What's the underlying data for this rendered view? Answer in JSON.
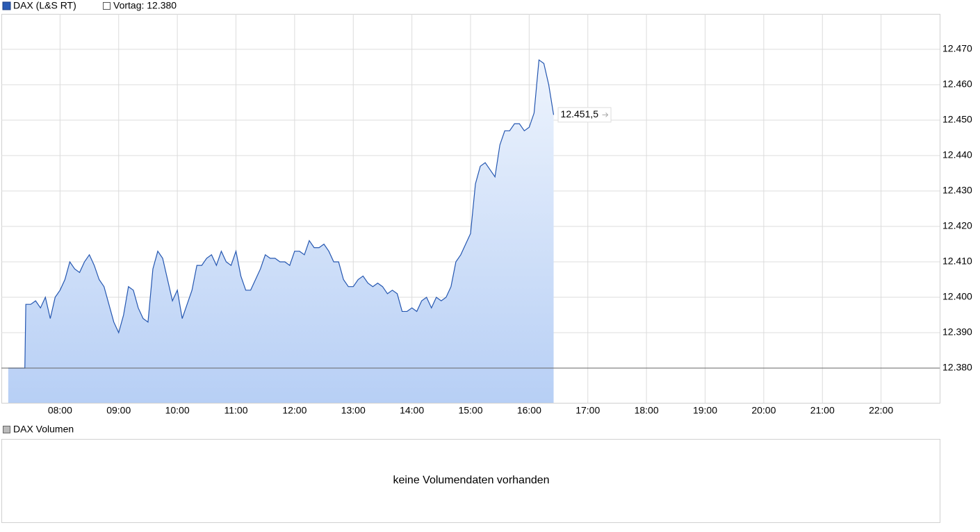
{
  "chart_data": {
    "type": "line",
    "series": [
      {
        "name": "DAX (L&S RT)",
        "color": "#2456b0",
        "values": [
          12380,
          12380,
          12380,
          12380,
          12380,
          12398,
          12398,
          12399,
          12397,
          12400,
          12394,
          12400,
          12402,
          12405,
          12410,
          12408,
          12407,
          12410,
          12412,
          12409,
          12405,
          12403,
          12398,
          12393,
          12390,
          12395,
          12403,
          12402,
          12397,
          12394,
          12393,
          12408,
          12413,
          12411,
          12405,
          12399,
          12402,
          12394,
          12398,
          12402,
          12409,
          12409,
          12411,
          12412,
          12409,
          12413,
          12410,
          12409,
          12413,
          12406,
          12402,
          12402,
          12405,
          12408,
          12412,
          12411,
          12411,
          12410,
          12410,
          12409,
          12413,
          12413,
          12412,
          12416,
          12414,
          12414,
          12415,
          12413,
          12410,
          12410,
          12405,
          12403,
          12403,
          12405,
          12406,
          12404,
          12403,
          12404,
          12403,
          12401,
          12402,
          12401,
          12396,
          12396,
          12397,
          12396,
          12399,
          12400,
          12397,
          12400,
          12399,
          12400,
          12403,
          12410,
          12412,
          12415,
          12418,
          12432,
          12437,
          12438,
          12436,
          12434,
          12443,
          12447,
          12447,
          12449,
          12449,
          12447,
          12448,
          12452,
          12467,
          12466,
          12460,
          12451.5
        ],
        "value_labels": [
          null,
          null,
          null,
          null,
          null,
          null,
          null,
          null,
          null,
          null,
          null,
          null,
          null,
          null,
          null,
          null,
          null,
          null,
          null,
          null,
          null,
          null,
          null,
          null,
          null,
          null,
          null,
          null,
          null,
          null,
          null,
          null,
          null,
          null,
          null,
          null,
          null,
          null,
          null,
          null,
          null,
          null,
          null,
          null,
          null,
          null,
          null,
          null,
          null,
          null,
          null,
          null,
          null,
          null,
          null,
          null,
          null,
          null,
          null,
          null,
          null,
          null,
          null,
          null,
          null,
          null,
          null,
          null,
          null,
          null,
          null,
          null,
          null,
          null,
          null,
          null,
          null,
          null,
          null,
          null,
          null,
          null,
          null,
          null,
          null,
          null,
          null,
          null,
          null,
          null,
          null,
          null,
          null,
          null,
          null,
          null,
          null,
          null,
          null,
          null,
          null,
          null,
          null,
          null,
          null,
          null,
          null,
          null,
          null,
          null,
          null,
          null,
          null,
          "12.451,5"
        ]
      }
    ],
    "x": [
      "07:07",
      "07:10",
      "07:15",
      "07:20",
      "07:24",
      "07:25",
      "07:30",
      "07:35",
      "07:40",
      "07:45",
      "07:50",
      "07:55",
      "08:00",
      "08:05",
      "08:10",
      "08:15",
      "08:20",
      "08:25",
      "08:30",
      "08:35",
      "08:40",
      "08:45",
      "08:50",
      "08:55",
      "09:00",
      "09:05",
      "09:10",
      "09:15",
      "09:20",
      "09:25",
      "09:30",
      "09:35",
      "09:40",
      "09:45",
      "09:50",
      "09:55",
      "10:00",
      "10:05",
      "10:10",
      "10:15",
      "10:20",
      "10:25",
      "10:30",
      "10:35",
      "10:40",
      "10:45",
      "10:50",
      "10:55",
      "11:00",
      "11:05",
      "11:10",
      "11:15",
      "11:20",
      "11:25",
      "11:30",
      "11:35",
      "11:40",
      "11:45",
      "11:50",
      "11:55",
      "12:00",
      "12:05",
      "12:10",
      "12:15",
      "12:20",
      "12:25",
      "12:30",
      "12:35",
      "12:40",
      "12:45",
      "12:50",
      "12:55",
      "13:00",
      "13:05",
      "13:10",
      "13:15",
      "13:20",
      "13:25",
      "13:30",
      "13:35",
      "13:40",
      "13:45",
      "13:50",
      "13:55",
      "14:00",
      "14:05",
      "14:10",
      "14:15",
      "14:20",
      "14:25",
      "14:30",
      "14:35",
      "14:40",
      "14:45",
      "14:50",
      "14:55",
      "15:00",
      "15:05",
      "15:10",
      "15:15",
      "15:20",
      "15:25",
      "15:30",
      "15:35",
      "15:40",
      "15:45",
      "15:50",
      "15:55",
      "16:00",
      "16:05",
      "16:10",
      "16:15",
      "16:20",
      "16:25"
    ],
    "xlim": [
      "07:00",
      "23:00"
    ],
    "xticks": [
      "08:00",
      "09:00",
      "10:00",
      "11:00",
      "12:00",
      "13:00",
      "14:00",
      "15:00",
      "16:00",
      "17:00",
      "18:00",
      "19:00",
      "20:00",
      "21:00",
      "22:00"
    ],
    "ylim": [
      12370.2,
      12480
    ],
    "yticks": [
      {
        "value": 12380,
        "label": "12.380"
      },
      {
        "value": 12390,
        "label": "12.390"
      },
      {
        "value": 12400,
        "label": "12.400"
      },
      {
        "value": 12410,
        "label": "12.410"
      },
      {
        "value": 12420,
        "label": "12.420"
      },
      {
        "value": 12430,
        "label": "12.430"
      },
      {
        "value": 12440,
        "label": "12.440"
      },
      {
        "value": 12450,
        "label": "12.450"
      },
      {
        "value": 12460,
        "label": "12.460"
      },
      {
        "value": 12470,
        "label": "12.470"
      }
    ],
    "grid": true,
    "reference": {
      "name": "Vortag: 12.380",
      "value": 12380,
      "color": "#666666"
    },
    "volume_panel": {
      "title": "DAX Volumen",
      "message": "keine Volumendaten vorhanden"
    }
  }
}
